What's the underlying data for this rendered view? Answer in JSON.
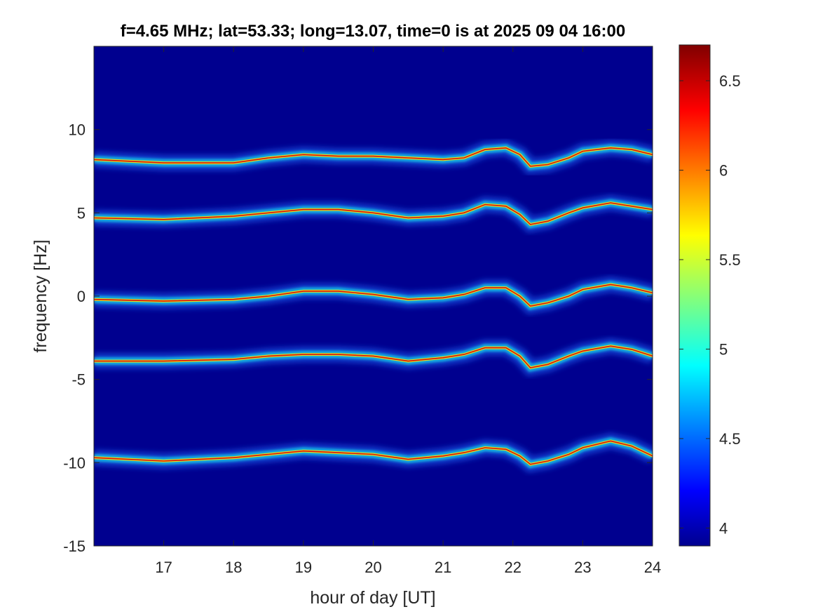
{
  "chart_data": {
    "type": "heatmap",
    "title": "f=4.65 MHz;  lat=53.33; long=13.07, time=0 is at 2025 09 04 16:00",
    "xlabel": "hour of day [UT]",
    "ylabel": "frequency [Hz]",
    "xlim": [
      16.0,
      24.0
    ],
    "ylim": [
      -15,
      15
    ],
    "xticks": [
      17,
      18,
      19,
      20,
      21,
      22,
      23,
      24
    ],
    "xtick_labels": [
      "17",
      "18",
      "19",
      "20",
      "21",
      "22",
      "23",
      "24"
    ],
    "yticks": [
      -15,
      -10,
      -5,
      0,
      5,
      10
    ],
    "ytick_labels": [
      "-15",
      "-10",
      "-5",
      "0",
      "5",
      "10"
    ],
    "colormap": "jet",
    "background_color": "#00008f",
    "colorbar": {
      "range": [
        3.9,
        6.7
      ],
      "ticks": [
        4,
        4.5,
        5,
        5.5,
        6,
        6.5
      ],
      "tick_labels": [
        "4",
        "4.5",
        "5",
        "5.5",
        "6",
        "6.5"
      ]
    },
    "traces": [
      {
        "name": "",
        "points": [
          [
            16.0,
            8.2
          ],
          [
            17.0,
            8.0
          ],
          [
            18.0,
            8.0
          ],
          [
            18.5,
            8.3
          ],
          [
            19.0,
            8.5
          ],
          [
            19.5,
            8.4
          ],
          [
            20.0,
            8.4
          ],
          [
            20.5,
            8.3
          ],
          [
            21.0,
            8.2
          ],
          [
            21.3,
            8.3
          ],
          [
            21.6,
            8.8
          ],
          [
            21.9,
            8.9
          ],
          [
            22.1,
            8.5
          ],
          [
            22.25,
            7.8
          ],
          [
            22.5,
            7.9
          ],
          [
            22.8,
            8.3
          ],
          [
            23.0,
            8.7
          ],
          [
            23.4,
            8.9
          ],
          [
            23.7,
            8.8
          ],
          [
            24.0,
            8.5
          ]
        ]
      },
      {
        "name": "",
        "points": [
          [
            16.0,
            4.7
          ],
          [
            17.0,
            4.6
          ],
          [
            18.0,
            4.8
          ],
          [
            18.5,
            5.0
          ],
          [
            19.0,
            5.2
          ],
          [
            19.5,
            5.2
          ],
          [
            20.0,
            5.0
          ],
          [
            20.5,
            4.7
          ],
          [
            21.0,
            4.8
          ],
          [
            21.3,
            5.0
          ],
          [
            21.6,
            5.5
          ],
          [
            21.9,
            5.4
          ],
          [
            22.1,
            4.9
          ],
          [
            22.25,
            4.3
          ],
          [
            22.5,
            4.5
          ],
          [
            22.8,
            5.0
          ],
          [
            23.0,
            5.3
          ],
          [
            23.4,
            5.6
          ],
          [
            23.7,
            5.4
          ],
          [
            24.0,
            5.2
          ]
        ]
      },
      {
        "name": "",
        "points": [
          [
            16.0,
            -0.2
          ],
          [
            17.0,
            -0.3
          ],
          [
            18.0,
            -0.2
          ],
          [
            18.5,
            0.0
          ],
          [
            19.0,
            0.3
          ],
          [
            19.5,
            0.3
          ],
          [
            20.0,
            0.1
          ],
          [
            20.5,
            -0.2
          ],
          [
            21.0,
            -0.1
          ],
          [
            21.3,
            0.1
          ],
          [
            21.6,
            0.5
          ],
          [
            21.9,
            0.5
          ],
          [
            22.1,
            0.0
          ],
          [
            22.25,
            -0.6
          ],
          [
            22.5,
            -0.4
          ],
          [
            22.8,
            0.0
          ],
          [
            23.0,
            0.4
          ],
          [
            23.4,
            0.7
          ],
          [
            23.7,
            0.5
          ],
          [
            24.0,
            0.2
          ]
        ]
      },
      {
        "name": "",
        "points": [
          [
            16.0,
            -3.9
          ],
          [
            17.0,
            -3.9
          ],
          [
            18.0,
            -3.8
          ],
          [
            18.5,
            -3.6
          ],
          [
            19.0,
            -3.5
          ],
          [
            19.5,
            -3.5
          ],
          [
            20.0,
            -3.6
          ],
          [
            20.5,
            -3.9
          ],
          [
            21.0,
            -3.7
          ],
          [
            21.3,
            -3.5
          ],
          [
            21.6,
            -3.1
          ],
          [
            21.9,
            -3.1
          ],
          [
            22.1,
            -3.6
          ],
          [
            22.25,
            -4.3
          ],
          [
            22.5,
            -4.1
          ],
          [
            22.8,
            -3.6
          ],
          [
            23.0,
            -3.3
          ],
          [
            23.4,
            -3.0
          ],
          [
            23.7,
            -3.2
          ],
          [
            24.0,
            -3.6
          ]
        ]
      },
      {
        "name": "",
        "points": [
          [
            16.0,
            -9.7
          ],
          [
            17.0,
            -9.9
          ],
          [
            18.0,
            -9.7
          ],
          [
            18.5,
            -9.5
          ],
          [
            19.0,
            -9.3
          ],
          [
            19.5,
            -9.4
          ],
          [
            20.0,
            -9.5
          ],
          [
            20.5,
            -9.8
          ],
          [
            21.0,
            -9.6
          ],
          [
            21.3,
            -9.4
          ],
          [
            21.6,
            -9.1
          ],
          [
            21.9,
            -9.2
          ],
          [
            22.1,
            -9.6
          ],
          [
            22.25,
            -10.1
          ],
          [
            22.5,
            -9.9
          ],
          [
            22.8,
            -9.5
          ],
          [
            23.0,
            -9.1
          ],
          [
            23.4,
            -8.7
          ],
          [
            23.7,
            -9.0
          ],
          [
            24.0,
            -9.6
          ]
        ]
      }
    ]
  }
}
